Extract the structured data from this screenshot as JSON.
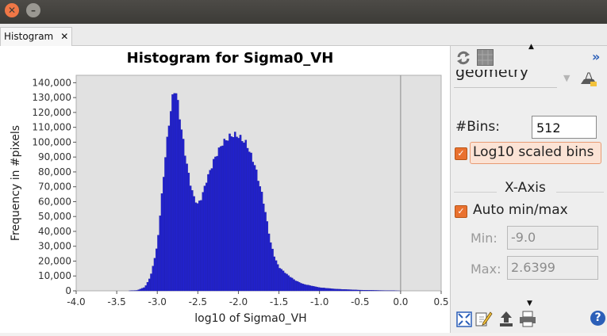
{
  "tab": {
    "label": "Histogram",
    "close": "✕"
  },
  "sidebar": {
    "collapse": "»",
    "geometry_value": "geometry",
    "bins_label": "#Bins:",
    "bins_value": "512",
    "log10_label": "Log10 scaled bins",
    "log10_checked": true,
    "xaxis_title": "X-Axis",
    "auto_label": "Auto min/max",
    "auto_checked": true,
    "min_label": "Min:",
    "min_value": "-9.0",
    "max_label": "Max:",
    "max_value": "2.6399",
    "help": "?"
  },
  "chart_data": {
    "type": "bar",
    "title": "Histogram for Sigma0_VH",
    "xlabel": "log10 of Sigma0_VH",
    "ylabel": "Frequency in #pixels",
    "xlim": [
      -4.0,
      0.5
    ],
    "ylim": [
      0,
      145000
    ],
    "xticks": [
      "-4.0",
      "-3.5",
      "-3.0",
      "-2.5",
      "-2.0",
      "-1.5",
      "-1.0",
      "-0.5",
      "0.0",
      "0.5"
    ],
    "yticks": [
      "0",
      "10,000",
      "20,000",
      "30,000",
      "40,000",
      "50,000",
      "60,000",
      "70,000",
      "80,000",
      "90,000",
      "100,000",
      "110,000",
      "120,000",
      "130,000",
      "140,000"
    ],
    "bar_color": "#2222cc",
    "marker_x": 0.0,
    "bin_width": 0.022,
    "profile": [
      [
        -3.35,
        0
      ],
      [
        -3.25,
        300
      ],
      [
        -3.15,
        2500
      ],
      [
        -3.08,
        10000
      ],
      [
        -3.0,
        30000
      ],
      [
        -2.95,
        60000
      ],
      [
        -2.9,
        90000
      ],
      [
        -2.85,
        115000
      ],
      [
        -2.81,
        130000
      ],
      [
        -2.78,
        137000
      ],
      [
        -2.75,
        128000
      ],
      [
        -2.7,
        108000
      ],
      [
        -2.65,
        90000
      ],
      [
        -2.6,
        74000
      ],
      [
        -2.55,
        63000
      ],
      [
        -2.5,
        58000
      ],
      [
        -2.45,
        63000
      ],
      [
        -2.4,
        73000
      ],
      [
        -2.3,
        88000
      ],
      [
        -2.2,
        99000
      ],
      [
        -2.1,
        104000
      ],
      [
        -2.05,
        105000
      ],
      [
        -2.0,
        104000
      ],
      [
        -1.9,
        99000
      ],
      [
        -1.8,
        85000
      ],
      [
        -1.7,
        63000
      ],
      [
        -1.6,
        32000
      ],
      [
        -1.55,
        22000
      ],
      [
        -1.5,
        16000
      ],
      [
        -1.4,
        11000
      ],
      [
        -1.3,
        7000
      ],
      [
        -1.2,
        4500
      ],
      [
        -1.0,
        2200
      ],
      [
        -0.8,
        1200
      ],
      [
        -0.5,
        500
      ],
      [
        -0.2,
        200
      ],
      [
        0.0,
        0
      ]
    ]
  }
}
